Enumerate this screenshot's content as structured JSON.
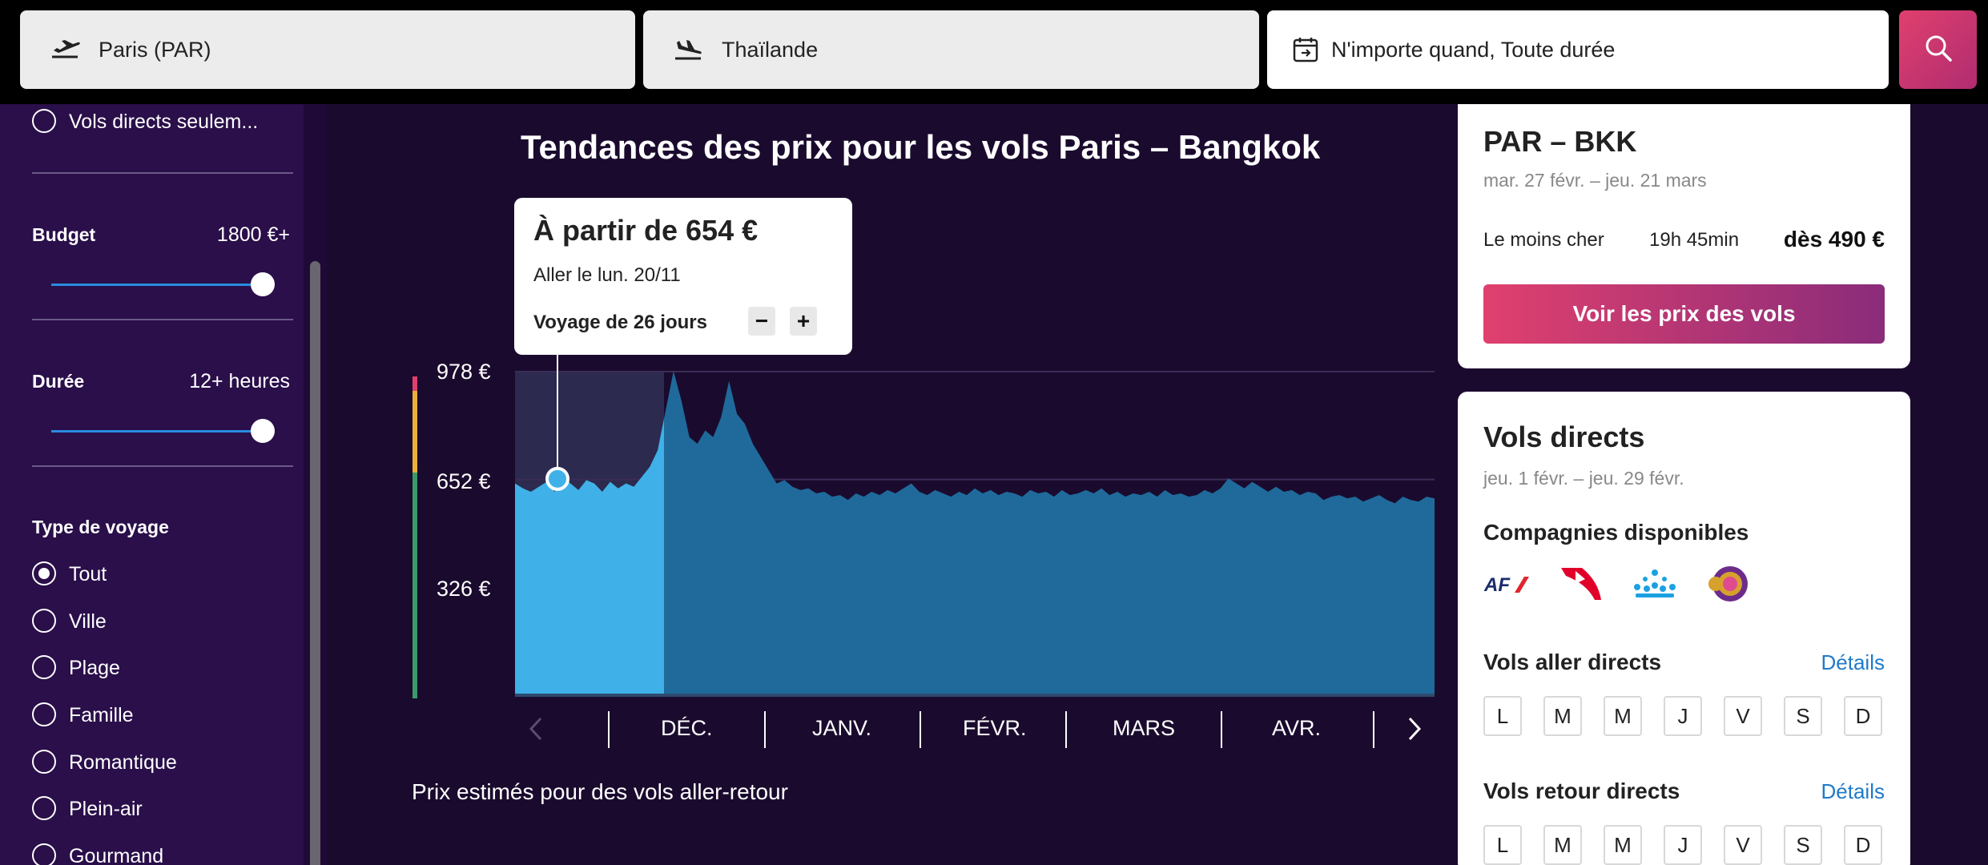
{
  "search": {
    "origin": "Paris (PAR)",
    "destination": "Thaïlande",
    "dates": "N'importe quand, Toute durée"
  },
  "sidebar": {
    "direct_only": "Vols directs seulem...",
    "budget_label": "Budget",
    "budget_value": "1800 €+",
    "duration_label": "Durée",
    "duration_value": "12+ heures",
    "trip_type_label": "Type de voyage",
    "trip_types": [
      "Tout",
      "Ville",
      "Plage",
      "Famille",
      "Romantique",
      "Plein-air",
      "Gourmand"
    ],
    "selected_trip_type": "Tout"
  },
  "main": {
    "title": "Tendances des prix pour les vols Paris – Bangkok",
    "tooltip": {
      "title": "À partir de 654 €",
      "subtitle": "Aller le lun. 20/11",
      "trip_length": "Voyage de 26 jours",
      "minus": "−",
      "plus": "+"
    },
    "footnote": "Prix estimés pour des vols aller-retour"
  },
  "chart_data": {
    "type": "area",
    "y_ticks": [
      "978 €",
      "652 €",
      "326 €"
    ],
    "ylim": [
      0,
      978
    ],
    "x_labels": [
      "DÉC.",
      "JANV.",
      "FÉVR.",
      "MARS",
      "AVR."
    ],
    "selected_price": 654,
    "values": [
      640,
      625,
      615,
      630,
      645,
      615,
      660,
      640,
      620,
      650,
      640,
      615,
      645,
      625,
      640,
      630,
      660,
      690,
      740,
      860,
      980,
      890,
      780,
      760,
      800,
      780,
      840,
      950,
      850,
      820,
      760,
      720,
      680,
      640,
      650,
      630,
      620,
      625,
      610,
      615,
      600,
      605,
      590,
      610,
      600,
      615,
      605,
      620,
      610,
      625,
      640,
      615,
      605,
      620,
      610,
      600,
      615,
      605,
      625,
      610,
      620,
      605,
      615,
      610,
      600,
      620,
      610,
      615,
      600,
      620,
      605,
      610,
      620,
      610,
      625,
      605,
      615,
      600,
      610,
      605,
      615,
      600,
      620,
      605,
      610,
      600,
      605,
      620,
      610,
      625,
      655,
      640,
      625,
      645,
      630,
      615,
      630,
      615,
      620,
      605,
      615,
      610,
      590,
      600,
      605,
      595,
      600,
      585,
      595,
      605,
      590,
      580,
      600,
      590,
      585,
      600,
      595
    ]
  },
  "colors": {
    "background": "#1a0b2e",
    "sidebar": "#2a0f4a",
    "area_highlight": "#3fb1e8",
    "area_main": "#1f6a9b",
    "accent_pink": "#e0406e"
  },
  "card_route": {
    "title": "PAR – BKK",
    "dates": "mar. 27 févr. – jeu. 21 mars",
    "cheapest_label": "Le moins cher",
    "duration": "19h 45min",
    "price": "dès 490 €",
    "cta": "Voir les prix des vols"
  },
  "card_direct": {
    "title": "Vols directs",
    "dates": "jeu. 1 févr. – jeu. 29 févr.",
    "airlines_label": "Compagnies disponibles",
    "airlines": [
      "Air France",
      "Qantas",
      "KLM",
      "Thai Airways"
    ],
    "outbound_label": "Vols aller directs",
    "return_label": "Vols retour directs",
    "details": "Détails",
    "days": [
      "L",
      "M",
      "M",
      "J",
      "V",
      "S",
      "D"
    ]
  }
}
